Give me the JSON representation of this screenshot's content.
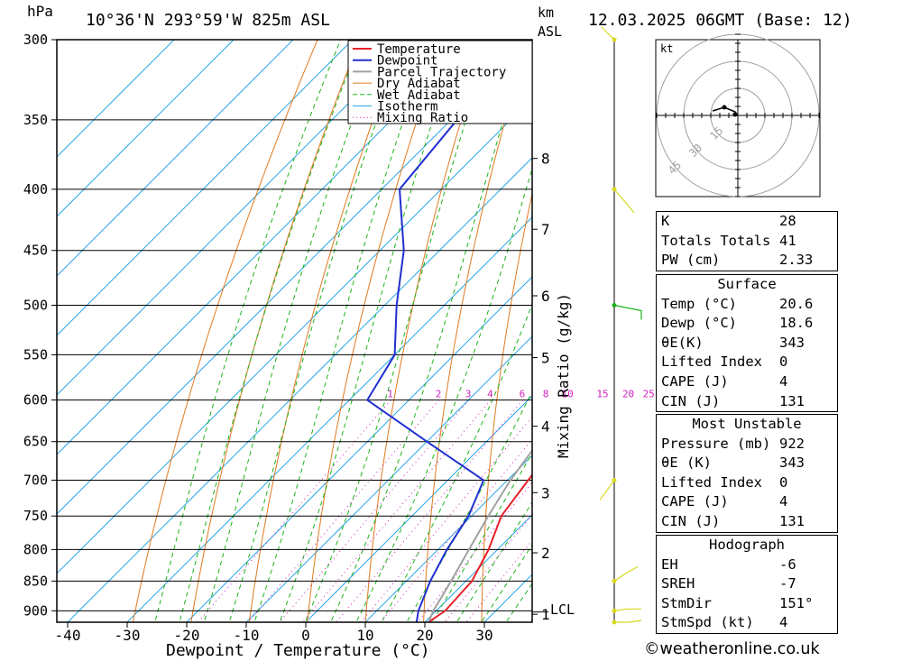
{
  "header": {
    "yunit": "hPa",
    "location": "10°36'N 293°59'W 825m ASL",
    "alt_unit_1": "km",
    "alt_unit_2": "ASL",
    "datetime": "12.03.2025 06GMT (Base: 12)"
  },
  "chart_data": {
    "type": "line",
    "title": "",
    "xlabel": "Dewpoint / Temperature (°C)",
    "ylabel": "hPa",
    "y2label": "Mixing Ratio (g/kg)",
    "xlim": [
      -43,
      38
    ],
    "ylim": [
      300,
      920
    ],
    "y_scale": "log-pressure, skew-T",
    "pressure_ticks": [
      300,
      350,
      400,
      450,
      500,
      550,
      600,
      650,
      700,
      750,
      800,
      850,
      900
    ],
    "temp_ticks": [
      -40,
      -30,
      -20,
      -10,
      0,
      10,
      20,
      30
    ],
    "km_ticks": [
      {
        "label": "8",
        "p": 377
      },
      {
        "label": "7",
        "p": 432
      },
      {
        "label": "6",
        "p": 491
      },
      {
        "label": "5",
        "p": 553
      },
      {
        "label": "4",
        "p": 631
      },
      {
        "label": "3",
        "p": 717
      },
      {
        "label": "2",
        "p": 805
      },
      {
        "label": "1",
        "p": 906
      }
    ],
    "lcl_label": "LCL",
    "lcl_p": 902,
    "mixing_ratio_labels": [
      "1",
      "2",
      "3",
      "4",
      "6",
      "8",
      "10",
      "15",
      "20",
      "25"
    ],
    "legend": [
      "Temperature",
      "Dewpoint",
      "Parcel Trajectory",
      "Dry Adiabat",
      "Wet Adiabat",
      "Isotherm",
      "Mixing Ratio"
    ],
    "legend_position": "top-right",
    "series": [
      {
        "name": "Temperature",
        "color": "#e8202a",
        "points": [
          [
            920,
            20.6
          ],
          [
            900,
            21.5
          ],
          [
            850,
            21.0
          ],
          [
            800,
            18.5
          ],
          [
            750,
            15.0
          ],
          [
            700,
            13.5
          ],
          [
            650,
            12.0
          ],
          [
            600,
            9.8
          ],
          [
            550,
            6.5
          ],
          [
            500,
            2.5
          ],
          [
            450,
            -2.5
          ],
          [
            400,
            -8.0
          ],
          [
            350,
            -16.0
          ],
          [
            300,
            -23.5
          ]
        ]
      },
      {
        "name": "Dewpoint",
        "color": "#2030d0",
        "points": [
          [
            920,
            18.6
          ],
          [
            900,
            17.0
          ],
          [
            850,
            14.0
          ],
          [
            800,
            11.5
          ],
          [
            750,
            9.5
          ],
          [
            700,
            6.0
          ],
          [
            650,
            -10.0
          ],
          [
            600,
            -27.0
          ],
          [
            550,
            -30.0
          ],
          [
            500,
            -38.0
          ],
          [
            450,
            -46.0
          ],
          [
            400,
            -57.0
          ],
          [
            350,
            -59.0
          ],
          [
            300,
            -66.0
          ]
        ]
      },
      {
        "name": "Parcel Trajectory",
        "color": "#a0a0a0",
        "points": [
          [
            920,
            20.6
          ],
          [
            900,
            19.5
          ],
          [
            850,
            17.5
          ],
          [
            800,
            15.2
          ],
          [
            750,
            12.8
          ],
          [
            700,
            10.5
          ],
          [
            650,
            8.8
          ],
          [
            600,
            7.0
          ],
          [
            550,
            4.5
          ],
          [
            500,
            1.5
          ],
          [
            450,
            -2.5
          ],
          [
            400,
            -8.5
          ],
          [
            350,
            -17.5
          ],
          [
            300,
            -30.0
          ]
        ]
      }
    ],
    "wind_barbs_pressure": [
      300,
      400,
      500,
      700,
      850,
      900,
      920
    ],
    "hodograph": {
      "unit": "kt",
      "ring_labels": [
        "15",
        "30",
        "45"
      ]
    }
  },
  "table_indices": [
    {
      "label": "K",
      "value": "28"
    },
    {
      "label": "Totals Totals",
      "value": "41"
    },
    {
      "label": "PW (cm)",
      "value": "2.33"
    }
  ],
  "table_surface": {
    "title": "Surface",
    "rows": [
      {
        "label": "Temp (°C)",
        "value": "20.6"
      },
      {
        "label": "Dewp (°C)",
        "value": "18.6"
      },
      {
        "label": "θE(K)",
        "value": "343"
      },
      {
        "label": "Lifted Index",
        "value": "0"
      },
      {
        "label": "CAPE (J)",
        "value": "4"
      },
      {
        "label": "CIN (J)",
        "value": "131"
      }
    ]
  },
  "table_mu": {
    "title": "Most Unstable",
    "rows": [
      {
        "label": "Pressure (mb)",
        "value": "922"
      },
      {
        "label": "θE (K)",
        "value": "343"
      },
      {
        "label": "Lifted Index",
        "value": "0"
      },
      {
        "label": "CAPE (J)",
        "value": "4"
      },
      {
        "label": "CIN (J)",
        "value": "131"
      }
    ]
  },
  "table_hodo": {
    "title": "Hodograph",
    "rows": [
      {
        "label": "EH",
        "value": "-6"
      },
      {
        "label": "SREH",
        "value": "-7"
      },
      {
        "label": "StmDir",
        "value": "151°"
      },
      {
        "label": "StmSpd (kt)",
        "value": "4"
      }
    ]
  },
  "footer": {
    "text": "©weatheronline.co.uk"
  }
}
